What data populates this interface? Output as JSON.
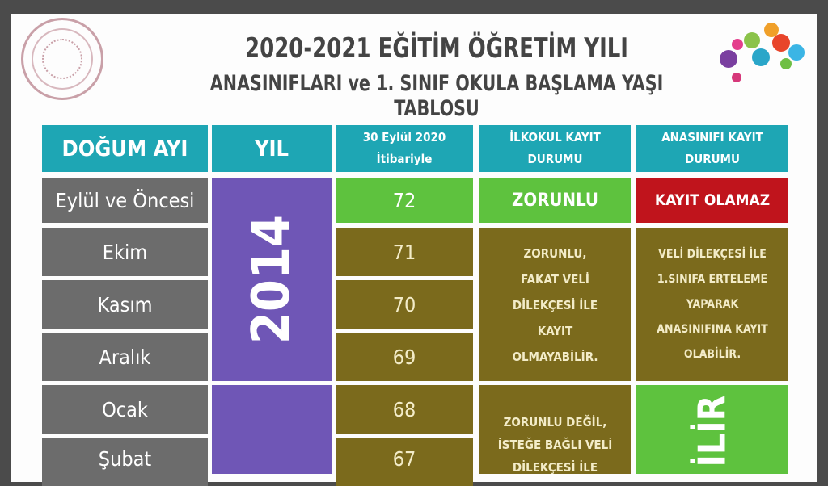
{
  "header": {
    "title": "2020-2021 EĞİTİM ÖĞRETİM YILI",
    "subtitle": "ANASINIFLARI ve 1. SINIF OKULA BAŞLAMA YAŞI TABLOSU"
  },
  "columns": [
    "DOĞUM AYI",
    "YIL",
    "30 Eylül 2020 İtibariyle",
    "İLKOKUL KAYIT DURUMU",
    "ANASINIFI KAYIT DURUMU"
  ],
  "rows": [
    {
      "month": "Eylül ve Öncesi",
      "age": "72"
    },
    {
      "month": "Ekim",
      "age": "71"
    },
    {
      "month": "Kasım",
      "age": "70"
    },
    {
      "month": "Aralık",
      "age": "69"
    },
    {
      "month": "Ocak",
      "age": "68"
    },
    {
      "month": "Şubat",
      "age": "67"
    }
  ],
  "year": "2014",
  "ilkokul": {
    "row1": "ZORUNLU",
    "rows2_4": "ZORUNLU, FAKAT VELİ DİLEKÇESİ İLE KAYIT OLMAYABİLİR.",
    "rows5": "ZORUNLU DEĞİL, İSTEĞE BAĞLI VELİ DİLEKÇESİ İLE"
  },
  "anasinifi": {
    "row1": "KAYIT OLAMAZ",
    "rows2_4": "VELİ DİLEKÇESİ İLE 1.SINIFA ERTELEME YAPARAK ANASINIFINA KAYIT OLABİLİR.",
    "rows5": "İLİR"
  },
  "colors": {
    "header": "#1ea6b4",
    "month": "#6c6c6c",
    "year": "#6f56b6",
    "green": "#5ec23e",
    "olive": "#7b6a1c",
    "red": "#c0141c"
  }
}
